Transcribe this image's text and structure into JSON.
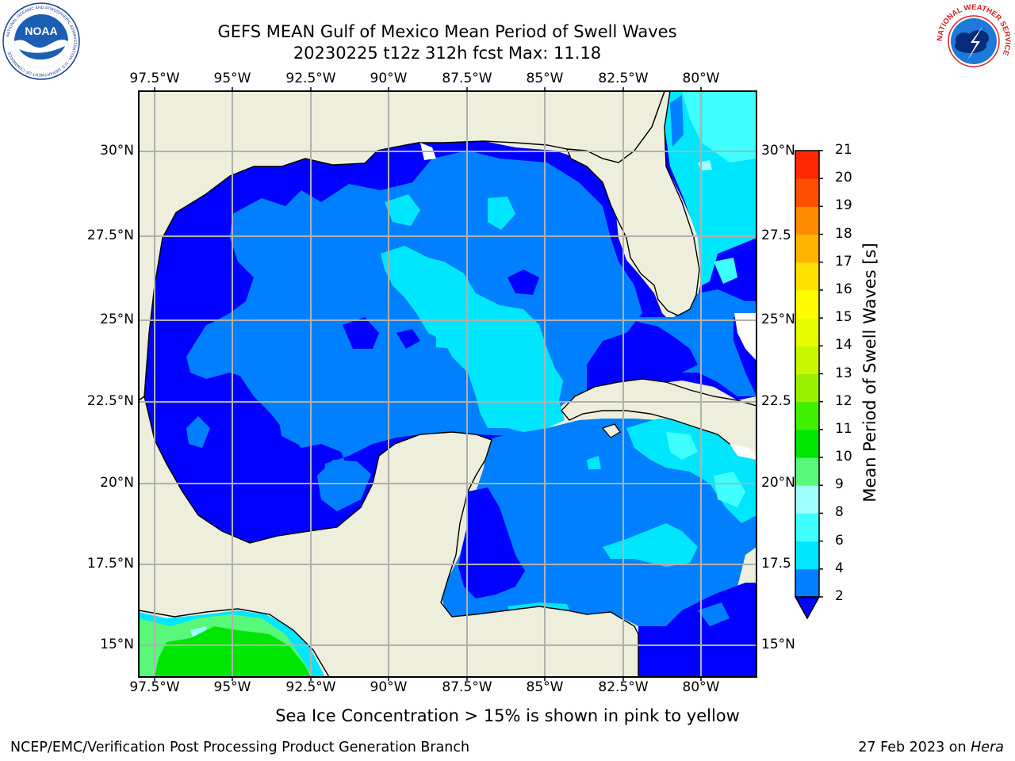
{
  "title": {
    "line1": "GEFS MEAN Gulf of Mexico Mean Period of Swell Waves",
    "line2": "20230225 t12z 312h fcst   Max: 11.18"
  },
  "map": {
    "lon_labels": [
      "97.5°W",
      "95°W",
      "92.5°W",
      "90°W",
      "87.5°W",
      "85°W",
      "82.5°W",
      "80°W"
    ],
    "lat_labels_left": [
      "30°N",
      "27.5°N",
      "25°N",
      "22.5°N",
      "20°N",
      "17.5°N",
      "15°N"
    ],
    "lat_labels_right": [
      "30°N",
      "27.5",
      "25°N",
      "22.5",
      "20°N",
      "17.5",
      "15°N"
    ],
    "lon_range": [
      -98,
      -78.2
    ],
    "lat_range": [
      14,
      31.6
    ],
    "land_color": "#eeeedc",
    "grid_color": "#b0b0b0"
  },
  "colorbar": {
    "label": "Mean Period of Swell Waves [s]",
    "ticks": [
      "2",
      "4",
      "6",
      "8",
      "9",
      "10",
      "11",
      "12",
      "13",
      "14",
      "15",
      "16",
      "17",
      "18",
      "19",
      "20",
      "21"
    ],
    "colors": [
      "#0080ff",
      "#00e6ff",
      "#40ffff",
      "#a0ffff",
      "#58f87a",
      "#00e600",
      "#40f000",
      "#98f000",
      "#c8f800",
      "#e8fc00",
      "#fffc00",
      "#ffe000",
      "#ffb400",
      "#ff8c00",
      "#ff5000",
      "#ff2800",
      "#ff0000"
    ],
    "under_color": "#0000ff",
    "levels": {
      "0-2": "#0000ff",
      "2-4": "#0080ff",
      "4-6": "#00e6ff",
      "6-8": "#40ffff",
      "8-9": "#a0ffff",
      "9-10": "#58f87a",
      "10-11": "#00e600"
    }
  },
  "caption": "Sea Ice Concentration > 15% is shown in pink to yellow",
  "footer": {
    "left": "NCEP/EMC/Verification Post Processing Product Generation Branch",
    "right_prefix": "27 Feb 2023 on ",
    "right_machine": "Hera"
  },
  "logos": {
    "left": "noaa-logo",
    "left_ring_text": "NATIONAL OCEANIC AND ATMOSPHERIC ADMINISTRATION · U.S. DEPARTMENT OF COMMERCE",
    "left_center_text": "NOAA",
    "right": "nws-logo",
    "right_ring_text": "NATIONAL WEATHER SERVICE"
  }
}
